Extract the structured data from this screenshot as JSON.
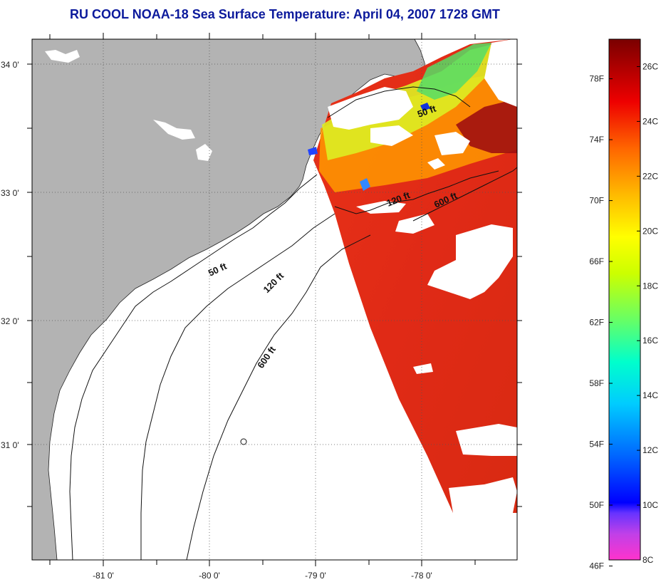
{
  "title": "RU COOL  NOAA-18  Sea Surface Temperature:  April 04, 2007 1728 GMT",
  "map": {
    "lon_ticks": [
      "-81 0'",
      "-80 0'",
      "-79 0'",
      "-78 0'"
    ],
    "lat_ticks": [
      "34 0'",
      "33 0'",
      "32 0'",
      "31 0'"
    ],
    "contours": {
      "c50a": "50 ft",
      "c50b": "50 ft",
      "c120a": "120 ft",
      "c120b": "120 ft",
      "c600a": "600 ft",
      "c600b": "600 ft"
    },
    "colors": {
      "land": "#b3b3b3",
      "cloud": "#ffffff",
      "grid": "#555555"
    }
  },
  "colorbar": {
    "fahrenheit": [
      "78F",
      "74F",
      "70F",
      "66F",
      "62F",
      "58F",
      "54F",
      "50F",
      "46F"
    ],
    "celsius": [
      "26C",
      "24C",
      "22C",
      "20C",
      "18C",
      "16C",
      "14C",
      "12C",
      "10C",
      "8C"
    ],
    "range_c": [
      8,
      27
    ]
  }
}
